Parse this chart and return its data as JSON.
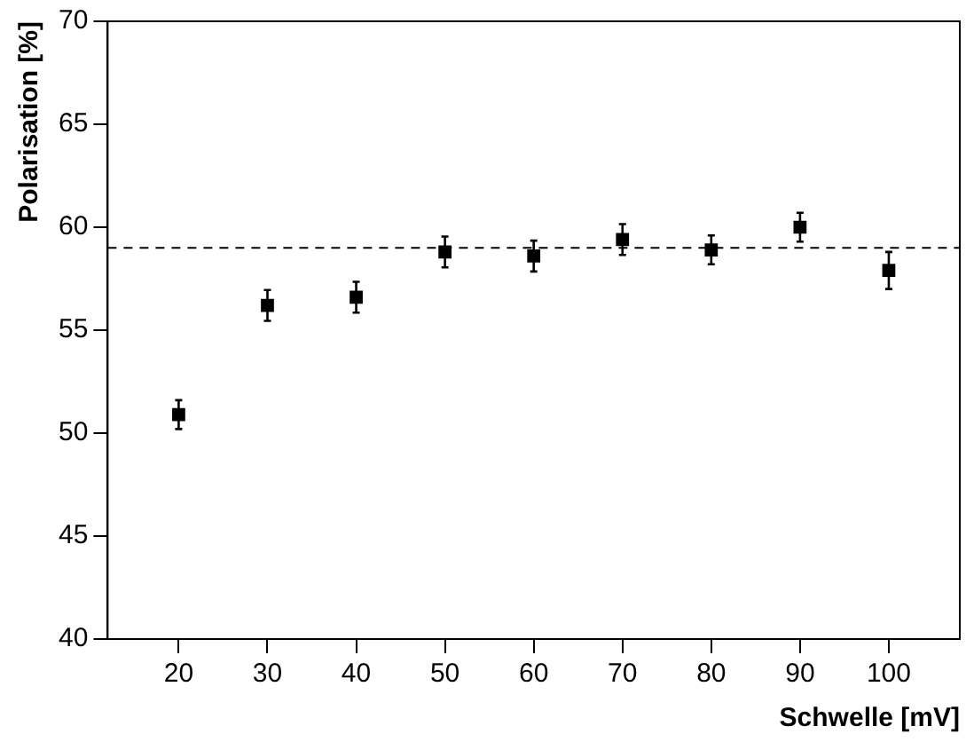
{
  "chart_data": {
    "type": "scatter",
    "xlabel": "Schwelle [mV]",
    "ylabel": "Polarisation [%]",
    "x": [
      20,
      30,
      40,
      50,
      60,
      70,
      80,
      90,
      100
    ],
    "series": [
      {
        "color": "#000000",
        "values": [
          50.9,
          56.2,
          56.6,
          58.8,
          58.6,
          59.4,
          58.9,
          60.0,
          57.9
        ],
        "errors": [
          0.7,
          0.75,
          0.75,
          0.75,
          0.75,
          0.75,
          0.7,
          0.7,
          0.9
        ]
      }
    ],
    "xlim": [
      12,
      108
    ],
    "xticks": [
      20,
      30,
      40,
      50,
      60,
      70,
      80,
      90,
      100
    ],
    "ylim": [
      40,
      70
    ],
    "yticks": [
      40,
      45,
      50,
      55,
      60,
      65,
      70
    ],
    "ref_lines": [
      {
        "axis": "y",
        "value": 59.0,
        "color": "#000000",
        "line_style": "dashed"
      }
    ],
    "grid": false,
    "legend": false,
    "marker": "square"
  }
}
